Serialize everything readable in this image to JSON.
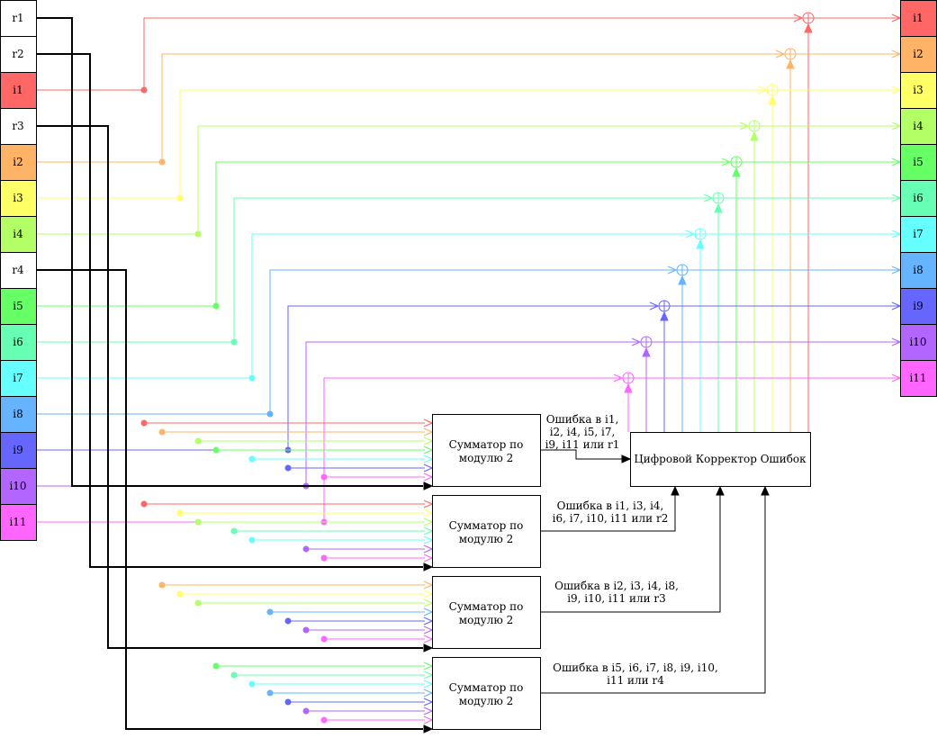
{
  "left_cells": [
    {
      "id": "r1",
      "label": "r1",
      "color": "#ffffff"
    },
    {
      "id": "r2",
      "label": "r2",
      "color": "#ffffff"
    },
    {
      "id": "i1",
      "label": "i1",
      "color": "#ff6666"
    },
    {
      "id": "r3",
      "label": "r3",
      "color": "#ffffff"
    },
    {
      "id": "i2",
      "label": "i2",
      "color": "#ffb366"
    },
    {
      "id": "i3",
      "label": "i3",
      "color": "#ffff66"
    },
    {
      "id": "i4",
      "label": "i4",
      "color": "#b3ff66"
    },
    {
      "id": "r4",
      "label": "r4",
      "color": "#ffffff"
    },
    {
      "id": "i5",
      "label": "i5",
      "color": "#66ff66"
    },
    {
      "id": "i6",
      "label": "i6",
      "color": "#66ffb3"
    },
    {
      "id": "i7",
      "label": "i7",
      "color": "#66ffff"
    },
    {
      "id": "i8",
      "label": "i8",
      "color": "#66b3ff"
    },
    {
      "id": "i9",
      "label": "i9",
      "color": "#6666ff"
    },
    {
      "id": "i10",
      "label": "i10",
      "color": "#b366ff"
    },
    {
      "id": "i11",
      "label": "i11",
      "color": "#ff66ff"
    }
  ],
  "right_cells": [
    {
      "id": "i1",
      "label": "i1",
      "color": "#ff6666"
    },
    {
      "id": "i2",
      "label": "i2",
      "color": "#ffb366"
    },
    {
      "id": "i3",
      "label": "i3",
      "color": "#ffff66"
    },
    {
      "id": "i4",
      "label": "i4",
      "color": "#b3ff66"
    },
    {
      "id": "i5",
      "label": "i5",
      "color": "#66ff66"
    },
    {
      "id": "i6",
      "label": "i6",
      "color": "#66ffb3"
    },
    {
      "id": "i7",
      "label": "i7",
      "color": "#66ffff"
    },
    {
      "id": "i8",
      "label": "i8",
      "color": "#66b3ff"
    },
    {
      "id": "i9",
      "label": "i9",
      "color": "#6666ff"
    },
    {
      "id": "i10",
      "label": "i10",
      "color": "#b366ff"
    },
    {
      "id": "i11",
      "label": "i11",
      "color": "#ff66ff"
    }
  ],
  "adders": [
    {
      "id": "a1",
      "line1": "Сумматор по",
      "line2": "модулю 2",
      "parity": "r1",
      "inputs": [
        "i1",
        "i2",
        "i4",
        "i5",
        "i7",
        "i9",
        "i11"
      ]
    },
    {
      "id": "a2",
      "line1": "Сумматор по",
      "line2": "модулю 2",
      "parity": "r2",
      "inputs": [
        "i1",
        "i3",
        "i4",
        "i6",
        "i7",
        "i10",
        "i11"
      ]
    },
    {
      "id": "a3",
      "line1": "Сумматор по",
      "line2": "модулю 2",
      "parity": "r3",
      "inputs": [
        "i2",
        "i3",
        "i4",
        "i8",
        "i9",
        "i10",
        "i11"
      ]
    },
    {
      "id": "a4",
      "line1": "Сумматор по",
      "line2": "модулю 2",
      "parity": "r4",
      "inputs": [
        "i5",
        "i6",
        "i7",
        "i8",
        "i9",
        "i10",
        "i11"
      ]
    }
  ],
  "corrector": {
    "label": "Цифровой Корректор Ошибок"
  },
  "error_notes": [
    {
      "lines": [
        "Ошибка в i1,",
        "i2, i4, i5, i7,",
        "i9, i11 или r1"
      ]
    },
    {
      "lines": [
        "Ошибка в i1, i3, i4,",
        "i6, i7, i10, i11 или r2"
      ]
    },
    {
      "lines": [
        "Ошибка в i2, i3, i4, i8,",
        "i9, i10, i11 или r3"
      ]
    },
    {
      "lines": [
        "Ошибка в i5, i6, i7, i8, i9, i10,",
        "i11 или r4"
      ]
    }
  ]
}
